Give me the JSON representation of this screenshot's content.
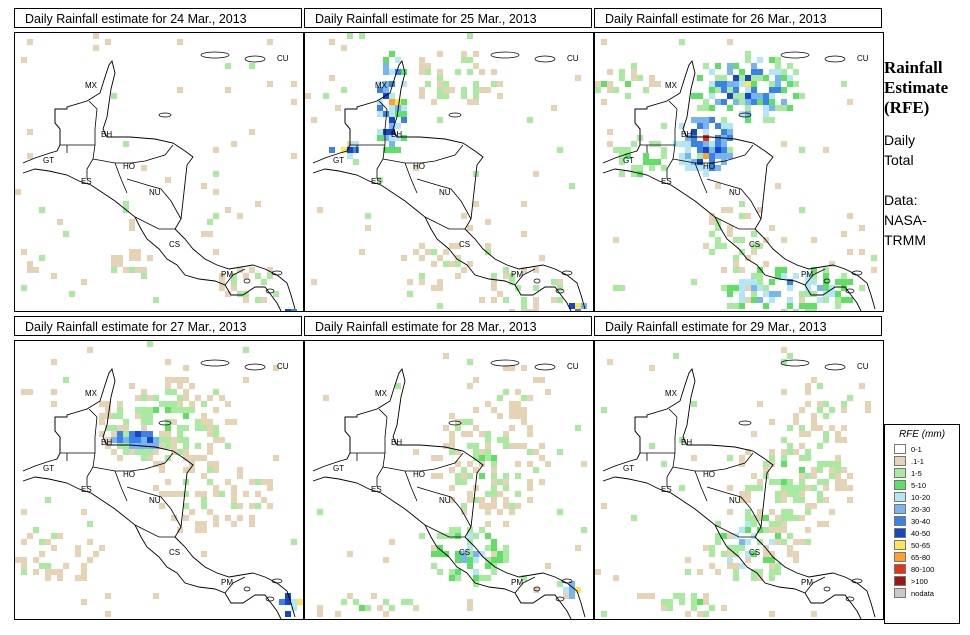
{
  "panels": [
    {
      "title": "Daily Rainfall estimate for  24 Mar., 2013",
      "intensity": "low"
    },
    {
      "title": "Daily Rainfall estimate for  25 Mar., 2013",
      "intensity": "medium"
    },
    {
      "title": "Daily Rainfall estimate for  26 Mar., 2013",
      "intensity": "high"
    },
    {
      "title": "Daily Rainfall estimate for  27 Mar., 2013",
      "intensity": "medium"
    },
    {
      "title": "Daily Rainfall estimate for  28 Mar., 2013",
      "intensity": "low-medium"
    },
    {
      "title": "Daily Rainfall estimate for  29 Mar., 2013",
      "intensity": "low"
    }
  ],
  "country_labels": [
    "MX",
    "CU",
    "BH",
    "GT",
    "HO",
    "ES",
    "NU",
    "CS",
    "PM"
  ],
  "side": {
    "title_line1": "Rainfall",
    "title_line2": "Estimate",
    "title_line3": "(RFE)",
    "sub1": "Daily",
    "sub2": "Total",
    "data1": "Data:",
    "data2": "NASA-",
    "data3": "TRMM"
  },
  "legend": {
    "title": "RFE (mm)",
    "items": [
      {
        "label": "0-1",
        "color": "#ffffff"
      },
      {
        "label": ".1-1",
        "color": "#e6d2b4"
      },
      {
        "label": "1-5",
        "color": "#a8eba0"
      },
      {
        "label": "5-10",
        "color": "#5ee065"
      },
      {
        "label": "10-20",
        "color": "#b4e6f5"
      },
      {
        "label": "20-30",
        "color": "#78b4f0"
      },
      {
        "label": "30-40",
        "color": "#3c82e6"
      },
      {
        "label": "40-50",
        "color": "#1446c8"
      },
      {
        "label": "50-65",
        "color": "#ffe650"
      },
      {
        "label": "65-80",
        "color": "#ffa028"
      },
      {
        "label": "80-100",
        "color": "#e63214"
      },
      {
        "label": ">100",
        "color": "#a01414"
      },
      {
        "label": "nodata",
        "color": "#c8c8c8"
      }
    ]
  }
}
